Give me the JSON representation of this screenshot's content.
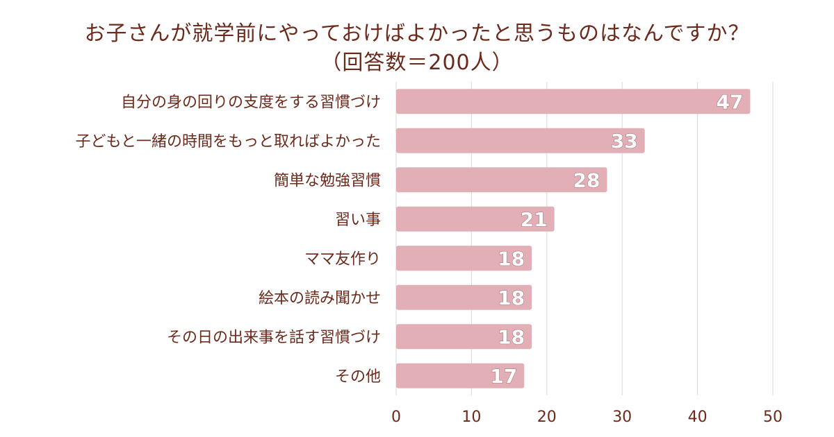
{
  "chart_data": {
    "type": "bar",
    "orientation": "horizontal",
    "title_line1": "お子さんが就学前にやっておけばよかったと思うものはなんですか？",
    "title_line2": "（回答数＝200人）",
    "categories": [
      "自分の身の回りの支度をする習慣づけ",
      "子どもと一緒の時間をもっと取ればよかった",
      "簡単な勉強習慣",
      "習い事",
      "ママ友作り",
      "絵本の読み聞かせ",
      "その日の出来事を話す習慣づけ",
      "その他"
    ],
    "values": [
      47,
      33,
      28,
      21,
      18,
      18,
      18,
      17
    ],
    "xlim": [
      0,
      50
    ],
    "xticks": [
      0,
      10,
      20,
      30,
      40,
      50
    ],
    "grid": true,
    "xlabel": "",
    "ylabel": "",
    "bar_color": "#e2afb6",
    "grid_color": "#d9d9d9",
    "text_color": "#6b2a1c"
  }
}
